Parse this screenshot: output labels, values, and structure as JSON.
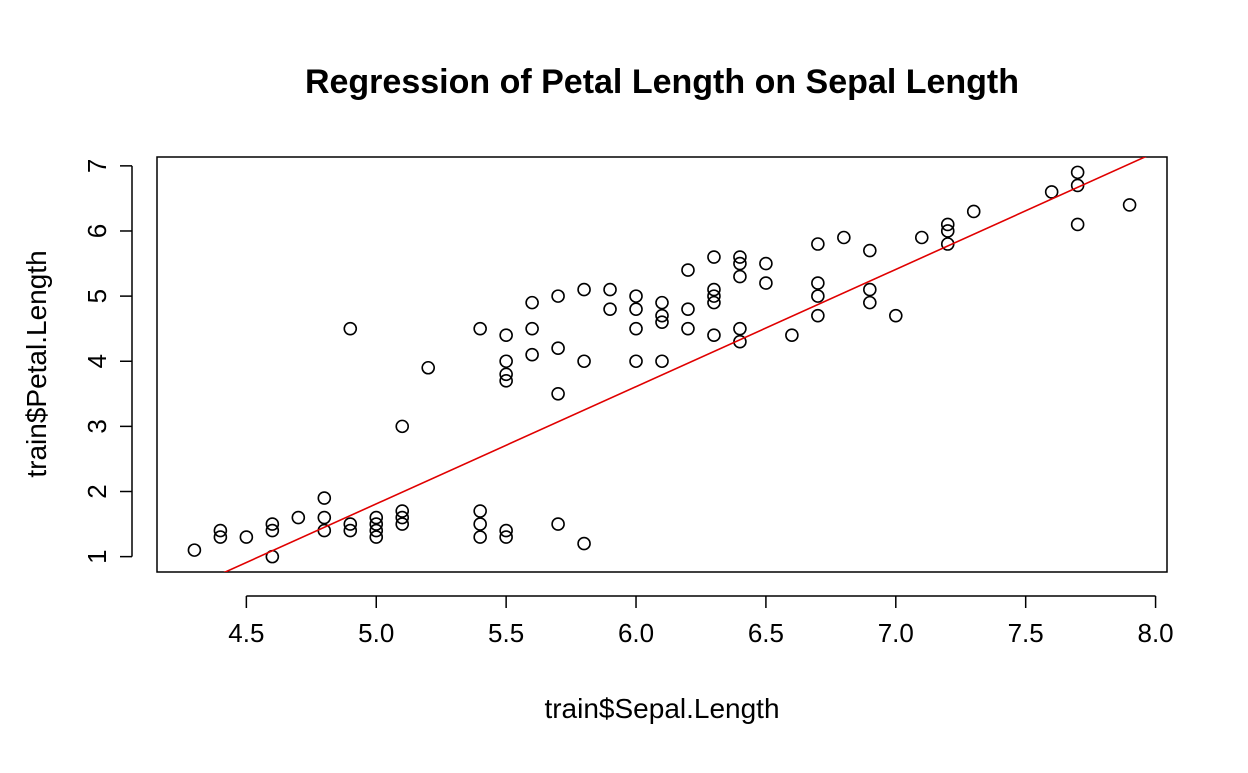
{
  "chart_data": {
    "type": "scatter",
    "title": "Regression of Petal Length on Sepal Length",
    "xlabel": "train$Sepal.Length",
    "ylabel": "train$Petal.Length",
    "xlim": [
      4.156,
      8.044
    ],
    "ylim": [
      0.764,
      7.136
    ],
    "x_ticks": [
      "4.5",
      "5.0",
      "5.5",
      "6.0",
      "6.5",
      "7.0",
      "7.5",
      "8.0"
    ],
    "y_ticks": [
      "1",
      "2",
      "3",
      "4",
      "5",
      "6",
      "7"
    ],
    "grid": false,
    "series": [
      {
        "points": [
          [
            4.3,
            1.1
          ],
          [
            4.4,
            1.3
          ],
          [
            4.4,
            1.4
          ],
          [
            4.5,
            1.3
          ],
          [
            4.6,
            1.0
          ],
          [
            4.6,
            1.4
          ],
          [
            4.6,
            1.5
          ],
          [
            4.7,
            1.6
          ],
          [
            4.8,
            1.4
          ],
          [
            4.8,
            1.6
          ],
          [
            4.8,
            1.9
          ],
          [
            4.9,
            1.4
          ],
          [
            4.9,
            1.5
          ],
          [
            4.9,
            4.5
          ],
          [
            5.0,
            1.3
          ],
          [
            5.0,
            1.4
          ],
          [
            5.0,
            1.5
          ],
          [
            5.0,
            1.6
          ],
          [
            5.1,
            1.5
          ],
          [
            5.1,
            1.6
          ],
          [
            5.1,
            1.7
          ],
          [
            5.1,
            3.0
          ],
          [
            5.2,
            3.9
          ],
          [
            5.4,
            1.3
          ],
          [
            5.4,
            1.5
          ],
          [
            5.4,
            1.7
          ],
          [
            5.4,
            4.5
          ],
          [
            5.5,
            1.3
          ],
          [
            5.5,
            1.4
          ],
          [
            5.5,
            3.7
          ],
          [
            5.5,
            3.8
          ],
          [
            5.5,
            4.0
          ],
          [
            5.5,
            4.4
          ],
          [
            5.6,
            4.1
          ],
          [
            5.6,
            4.5
          ],
          [
            5.6,
            4.9
          ],
          [
            5.7,
            1.5
          ],
          [
            5.7,
            3.5
          ],
          [
            5.7,
            4.2
          ],
          [
            5.7,
            5.0
          ],
          [
            5.8,
            1.2
          ],
          [
            5.8,
            4.0
          ],
          [
            5.8,
            5.1
          ],
          [
            5.9,
            4.8
          ],
          [
            5.9,
            5.1
          ],
          [
            6.0,
            4.0
          ],
          [
            6.0,
            4.5
          ],
          [
            6.0,
            4.8
          ],
          [
            6.0,
            5.0
          ],
          [
            6.1,
            4.0
          ],
          [
            6.1,
            4.6
          ],
          [
            6.1,
            4.7
          ],
          [
            6.1,
            4.9
          ],
          [
            6.2,
            4.5
          ],
          [
            6.2,
            4.8
          ],
          [
            6.2,
            5.4
          ],
          [
            6.3,
            4.4
          ],
          [
            6.3,
            4.9
          ],
          [
            6.3,
            5.0
          ],
          [
            6.3,
            5.1
          ],
          [
            6.3,
            5.6
          ],
          [
            6.4,
            4.3
          ],
          [
            6.4,
            4.5
          ],
          [
            6.4,
            5.3
          ],
          [
            6.4,
            5.5
          ],
          [
            6.4,
            5.6
          ],
          [
            6.5,
            5.2
          ],
          [
            6.5,
            5.5
          ],
          [
            6.6,
            4.4
          ],
          [
            6.7,
            4.7
          ],
          [
            6.7,
            5.0
          ],
          [
            6.7,
            5.2
          ],
          [
            6.7,
            5.8
          ],
          [
            6.8,
            5.9
          ],
          [
            6.9,
            4.9
          ],
          [
            6.9,
            5.1
          ],
          [
            6.9,
            5.7
          ],
          [
            7.0,
            4.7
          ],
          [
            7.1,
            5.9
          ],
          [
            7.2,
            5.8
          ],
          [
            7.2,
            6.0
          ],
          [
            7.2,
            6.1
          ],
          [
            7.3,
            6.3
          ],
          [
            7.6,
            6.6
          ],
          [
            7.7,
            6.1
          ],
          [
            7.7,
            6.7
          ],
          [
            7.7,
            6.9
          ],
          [
            7.9,
            6.4
          ]
        ],
        "marker": "open-circle",
        "color": "#000000"
      }
    ],
    "regression_line": {
      "intercept": -7.19,
      "slope": 1.8,
      "color": "#e00000"
    }
  }
}
